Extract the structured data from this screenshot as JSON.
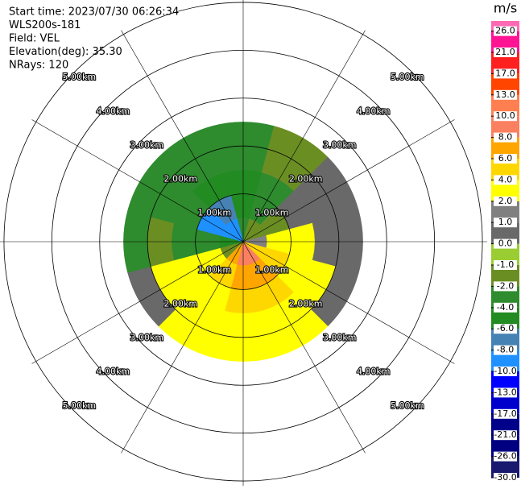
{
  "chart_data": {
    "type": "ppi",
    "header": [
      "Start time: 2023/07/30 06:26:34",
      "WLS200s-181",
      "Field: VEL",
      "Elevation(deg): 35.30",
      "NRays: 120"
    ],
    "unit": "m/s",
    "rlim": [
      0,
      5.1
    ],
    "rticks": [
      {
        "value": 1,
        "label": "1.00km"
      },
      {
        "value": 2,
        "label": "2.00km"
      },
      {
        "value": 3,
        "label": "3.00km"
      },
      {
        "value": 4,
        "label": "4.00km"
      },
      {
        "value": 5,
        "label": "5.00km"
      }
    ],
    "azimuths": [
      0,
      30,
      60,
      90,
      120,
      150,
      180,
      210,
      240,
      270,
      300,
      330
    ],
    "range_edges": [
      0,
      0.5,
      1,
      1.5,
      2,
      2.5
    ],
    "values": [
      [
        -3,
        -5,
        -5,
        -3,
        -3
      ],
      [
        -2,
        -3,
        -3,
        -1.5,
        -1.5
      ],
      [
        -1.5,
        -1.5,
        0.5,
        0.5,
        0.5
      ],
      [
        1.5,
        3,
        3,
        0.5,
        0.5
      ],
      [
        5,
        5,
        3,
        3,
        0.5
      ],
      [
        9,
        7,
        5,
        3,
        3
      ],
      [
        9,
        7,
        5,
        3,
        3
      ],
      [
        7,
        5,
        3,
        3,
        3
      ],
      [
        -1.5,
        3,
        3,
        3,
        0.5
      ],
      [
        -5,
        -3,
        -3,
        -1.5,
        -3
      ],
      [
        -9,
        -9,
        -3,
        -3,
        -3
      ],
      [
        -9,
        -7,
        -5,
        -3,
        -3
      ]
    ],
    "bounds": [
      -30,
      -26,
      -21,
      -17,
      -13,
      -10,
      -8,
      -6,
      -4,
      -2,
      -1,
      0,
      1,
      2,
      4,
      6,
      8,
      10,
      13,
      17,
      21,
      26,
      30
    ],
    "colors": [
      "#191970",
      "#000080",
      "#00008b",
      "#0000cd",
      "#0000ff",
      "#1e90ff",
      "#4682b4",
      "#228b22",
      "#2e8b2e",
      "#6b8e23",
      "#9acd32",
      "#696969",
      "#808080",
      "#ffff00",
      "#ffd700",
      "#ffa500",
      "#fa8060",
      "#ff7f50",
      "#ff4500",
      "#ff2020",
      "#ff1493",
      "#ff69b4"
    ],
    "cticks": [
      {
        "value": -30,
        "label": "-30.0"
      },
      {
        "value": -26,
        "label": "-26.0"
      },
      {
        "value": -21,
        "label": "-21.0"
      },
      {
        "value": -17,
        "label": "-17.0"
      },
      {
        "value": -13,
        "label": "-13.0"
      },
      {
        "value": -10,
        "label": "-10.0"
      },
      {
        "value": -8,
        "label": "-8.0"
      },
      {
        "value": -6,
        "label": "-6.0"
      },
      {
        "value": -4,
        "label": "-4.0"
      },
      {
        "value": -2,
        "label": "-2.0"
      },
      {
        "value": -1,
        "label": "-1.0"
      },
      {
        "value": 0,
        "label": "0.0"
      },
      {
        "value": 1,
        "label": "1.0"
      },
      {
        "value": 2,
        "label": "2.0"
      },
      {
        "value": 4,
        "label": "4.0"
      },
      {
        "value": 6,
        "label": "6.0"
      },
      {
        "value": 8,
        "label": "8.0"
      },
      {
        "value": 10,
        "label": "10.0"
      },
      {
        "value": 13,
        "label": "13.0"
      },
      {
        "value": 17,
        "label": "17.0"
      },
      {
        "value": 21,
        "label": "21.0"
      },
      {
        "value": 26,
        "label": "26.0"
      }
    ]
  }
}
